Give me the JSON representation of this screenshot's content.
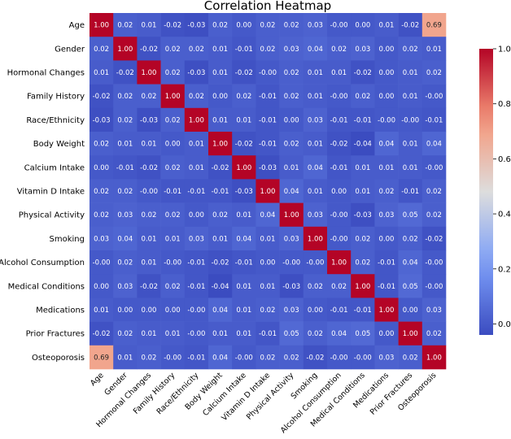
{
  "chart_data": {
    "type": "heatmap",
    "title": "Correlation Heatmap",
    "labels": [
      "Age",
      "Gender",
      "Hormonal Changes",
      "Family History",
      "Race/Ethnicity",
      "Body Weight",
      "Calcium Intake",
      "Vitamin D Intake",
      "Physical Activity",
      "Smoking",
      "Alcohol Consumption",
      "Medical Conditions",
      "Medications",
      "Prior Fractures",
      "Osteoporosis"
    ],
    "matrix_text": [
      [
        "1.00",
        "0.02",
        "0.01",
        "-0.02",
        "-0.03",
        "0.02",
        "0.00",
        "0.02",
        "0.02",
        "0.03",
        "-0.00",
        "0.00",
        "0.01",
        "-0.02",
        "0.69"
      ],
      [
        "0.02",
        "1.00",
        "-0.02",
        "0.02",
        "0.02",
        "0.01",
        "-0.01",
        "0.02",
        "0.03",
        "0.04",
        "0.02",
        "0.03",
        "0.00",
        "0.02",
        "0.01"
      ],
      [
        "0.01",
        "-0.02",
        "1.00",
        "0.02",
        "-0.03",
        "0.01",
        "-0.02",
        "-0.00",
        "0.02",
        "0.01",
        "0.01",
        "-0.02",
        "0.00",
        "0.01",
        "0.02"
      ],
      [
        "-0.02",
        "0.02",
        "0.02",
        "1.00",
        "0.02",
        "0.00",
        "0.02",
        "-0.01",
        "0.02",
        "0.01",
        "-0.00",
        "0.02",
        "0.00",
        "0.01",
        "-0.00"
      ],
      [
        "-0.03",
        "0.02",
        "-0.03",
        "0.02",
        "1.00",
        "0.01",
        "0.01",
        "-0.01",
        "0.00",
        "0.03",
        "-0.01",
        "-0.01",
        "-0.00",
        "-0.00",
        "-0.01"
      ],
      [
        "0.02",
        "0.01",
        "0.01",
        "0.00",
        "0.01",
        "1.00",
        "-0.02",
        "-0.01",
        "0.02",
        "0.01",
        "-0.02",
        "-0.04",
        "0.04",
        "0.01",
        "0.04"
      ],
      [
        "0.00",
        "-0.01",
        "-0.02",
        "0.02",
        "0.01",
        "-0.02",
        "1.00",
        "-0.03",
        "0.01",
        "0.04",
        "-0.01",
        "0.01",
        "0.01",
        "0.01",
        "-0.00"
      ],
      [
        "0.02",
        "0.02",
        "-0.00",
        "-0.01",
        "-0.01",
        "-0.01",
        "-0.03",
        "1.00",
        "0.04",
        "0.01",
        "0.00",
        "0.01",
        "0.02",
        "-0.01",
        "0.02"
      ],
      [
        "0.02",
        "0.03",
        "0.02",
        "0.02",
        "0.00",
        "0.02",
        "0.01",
        "0.04",
        "1.00",
        "0.03",
        "-0.00",
        "-0.03",
        "0.03",
        "0.05",
        "0.02"
      ],
      [
        "0.03",
        "0.04",
        "0.01",
        "0.01",
        "0.03",
        "0.01",
        "0.04",
        "0.01",
        "0.03",
        "1.00",
        "-0.00",
        "0.02",
        "0.00",
        "0.02",
        "-0.02"
      ],
      [
        "-0.00",
        "0.02",
        "0.01",
        "-0.00",
        "-0.01",
        "-0.02",
        "-0.01",
        "0.00",
        "-0.00",
        "-0.00",
        "1.00",
        "0.02",
        "-0.01",
        "0.04",
        "-0.00"
      ],
      [
        "0.00",
        "0.03",
        "-0.02",
        "0.02",
        "-0.01",
        "-0.04",
        "0.01",
        "0.01",
        "-0.03",
        "0.02",
        "0.02",
        "1.00",
        "-0.01",
        "0.05",
        "-0.00"
      ],
      [
        "0.01",
        "0.00",
        "0.00",
        "0.00",
        "-0.00",
        "0.04",
        "0.01",
        "0.02",
        "0.03",
        "0.00",
        "-0.01",
        "-0.01",
        "1.00",
        "0.00",
        "0.03"
      ],
      [
        "-0.02",
        "0.02",
        "0.01",
        "0.01",
        "-0.00",
        "0.01",
        "0.01",
        "-0.01",
        "0.05",
        "0.02",
        "0.04",
        "0.05",
        "0.00",
        "1.00",
        "0.02"
      ],
      [
        "0.69",
        "0.01",
        "0.02",
        "-0.00",
        "-0.01",
        "0.04",
        "-0.00",
        "0.02",
        "0.02",
        "-0.02",
        "-0.00",
        "-0.00",
        "0.03",
        "0.02",
        "1.00"
      ]
    ],
    "colormap": "coolwarm",
    "vmin": -0.04,
    "vmax": 1.0,
    "colorbar_ticks": [
      0.0,
      0.2,
      0.4,
      0.6,
      0.8,
      1.0
    ],
    "colorbar_tick_labels": [
      "0.0",
      "0.2",
      "0.4",
      "0.6",
      "0.8",
      "1.0"
    ]
  }
}
